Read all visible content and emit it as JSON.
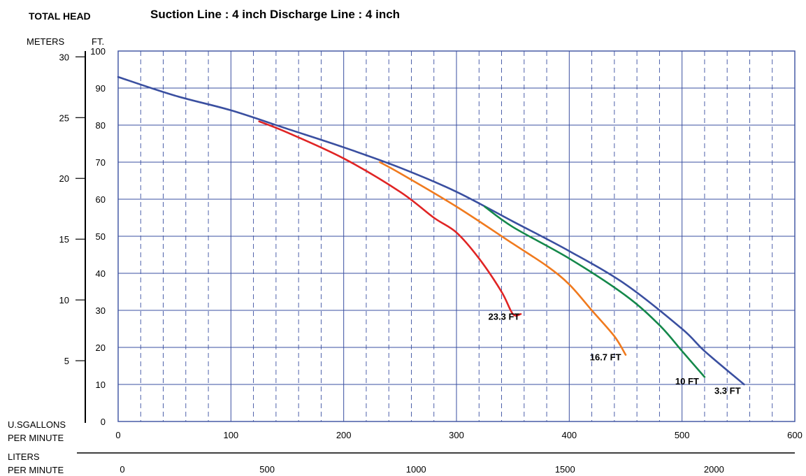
{
  "chart_data": {
    "type": "line",
    "header": {
      "total_head": "TOTAL HEAD",
      "title": "Suction  Line : 4 inch    Discharge Line : 4 inch"
    },
    "y_left_label": "METERS",
    "y_right_label": "FT.",
    "y_ft_ticks": [
      "0",
      "10",
      "20",
      "30",
      "40",
      "50",
      "60",
      "70",
      "80",
      "90",
      "100"
    ],
    "y_m_ticks": [
      {
        "m": 5,
        "label": "5"
      },
      {
        "m": 10,
        "label": "10"
      },
      {
        "m": 15,
        "label": "15"
      },
      {
        "m": 20,
        "label": "20"
      },
      {
        "m": 25,
        "label": "25"
      },
      {
        "m": 30,
        "label": "30"
      }
    ],
    "x_label_line1": "U.SGALLONS",
    "x_label_line2": "PER MINUTE",
    "x_ticks": [
      "0",
      "100",
      "200",
      "300",
      "400",
      "500",
      "600"
    ],
    "liters_label_line1": "LITERS",
    "liters_label_line2": "PER MINUTE",
    "liters_ticks": [
      {
        "l": 0,
        "label": "0"
      },
      {
        "l": 500,
        "label": "500"
      },
      {
        "l": 1000,
        "label": "1000"
      },
      {
        "l": 1500,
        "label": "1500"
      },
      {
        "l": 2000,
        "label": "2000"
      }
    ],
    "xlim": [
      0,
      600
    ],
    "ylim": [
      0,
      100
    ],
    "grid": true,
    "series": [
      {
        "name": "3.3 FT",
        "color": "#3a4fa0",
        "points": [
          [
            0,
            93
          ],
          [
            50,
            88
          ],
          [
            100,
            84
          ],
          [
            150,
            79
          ],
          [
            200,
            74
          ],
          [
            250,
            68.5
          ],
          [
            300,
            62
          ],
          [
            350,
            54
          ],
          [
            400,
            46
          ],
          [
            450,
            37
          ],
          [
            500,
            25
          ],
          [
            520,
            19
          ],
          [
            555,
            10
          ]
        ]
      },
      {
        "name": "10 FT",
        "color": "#14884a",
        "points": [
          [
            325,
            58
          ],
          [
            350,
            52.5
          ],
          [
            400,
            44
          ],
          [
            450,
            34
          ],
          [
            480,
            26
          ],
          [
            500,
            19
          ],
          [
            520,
            12
          ]
        ]
      },
      {
        "name": "16.7 FT",
        "color": "#f07a1e",
        "points": [
          [
            232,
            70
          ],
          [
            250,
            67
          ],
          [
            300,
            58
          ],
          [
            350,
            48
          ],
          [
            380,
            42
          ],
          [
            400,
            37
          ],
          [
            420,
            30
          ],
          [
            440,
            23
          ],
          [
            450,
            18
          ]
        ]
      },
      {
        "name": "23.3 FT",
        "color": "#e02424",
        "points": [
          [
            125,
            81
          ],
          [
            150,
            78
          ],
          [
            200,
            71
          ],
          [
            250,
            62
          ],
          [
            280,
            55
          ],
          [
            300,
            51
          ],
          [
            320,
            44
          ],
          [
            340,
            35
          ],
          [
            350,
            29
          ],
          [
            357,
            29
          ]
        ]
      }
    ],
    "labels": [
      {
        "text": "23.3 FT",
        "x": 356,
        "y": 29
      },
      {
        "text": "16.7 FT",
        "x": 446,
        "y": 18
      },
      {
        "text": "10 FT",
        "x": 515,
        "y": 11.5
      },
      {
        "text": "3.3 FT",
        "x": 552,
        "y": 9
      }
    ]
  }
}
